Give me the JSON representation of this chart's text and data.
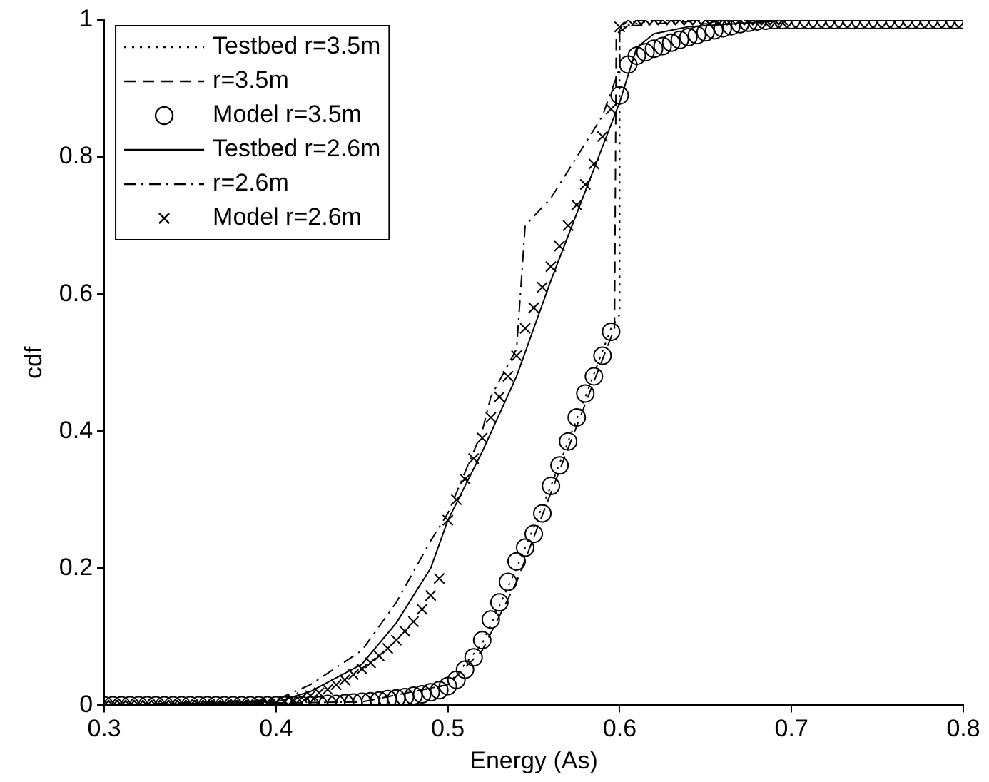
{
  "chart_data": {
    "type": "line",
    "xlabel": "Energy (As)",
    "ylabel": "cdf",
    "xlim": [
      0.3,
      0.8
    ],
    "ylim": [
      0,
      1
    ],
    "xticks": [
      0.3,
      0.4,
      0.5,
      0.6,
      0.7,
      0.8
    ],
    "yticks": [
      0,
      0.2,
      0.4,
      0.6,
      0.8,
      1
    ],
    "grid": false,
    "legend": "top left",
    "series": [
      {
        "name": "Testbed r=3.5m",
        "color": "#000000",
        "line_style": "dotted",
        "marker": "none",
        "x": [
          0.3,
          0.45,
          0.5,
          0.52,
          0.54,
          0.56,
          0.58,
          0.595,
          0.6,
          0.6,
          0.62,
          0.8
        ],
        "values": [
          0,
          0.005,
          0.03,
          0.09,
          0.2,
          0.32,
          0.45,
          0.55,
          0.57,
          0.99,
          1,
          1
        ]
      },
      {
        "name": "r=3.5m",
        "color": "#000000",
        "line_style": "dashed",
        "marker": "none",
        "x": [
          0.3,
          0.45,
          0.5,
          0.52,
          0.54,
          0.56,
          0.58,
          0.597,
          0.598,
          0.61,
          0.8
        ],
        "values": [
          0,
          0.005,
          0.03,
          0.08,
          0.18,
          0.31,
          0.44,
          0.55,
          0.98,
          1,
          1
        ]
      },
      {
        "name": "Model r=3.5m",
        "type": "scatter",
        "color": "#000000",
        "marker": "circle",
        "x": [
          0.3,
          0.305,
          0.31,
          0.315,
          0.32,
          0.325,
          0.33,
          0.335,
          0.34,
          0.345,
          0.35,
          0.355,
          0.36,
          0.365,
          0.37,
          0.375,
          0.38,
          0.385,
          0.39,
          0.395,
          0.4,
          0.405,
          0.41,
          0.415,
          0.42,
          0.425,
          0.43,
          0.435,
          0.44,
          0.445,
          0.45,
          0.455,
          0.46,
          0.465,
          0.47,
          0.475,
          0.48,
          0.485,
          0.49,
          0.495,
          0.5,
          0.505,
          0.51,
          0.515,
          0.52,
          0.525,
          0.53,
          0.535,
          0.54,
          0.545,
          0.55,
          0.555,
          0.56,
          0.565,
          0.57,
          0.575,
          0.58,
          0.585,
          0.59,
          0.595,
          0.6,
          0.605,
          0.61,
          0.615,
          0.62,
          0.625,
          0.63,
          0.635,
          0.64,
          0.645,
          0.65,
          0.655,
          0.66,
          0.665,
          0.67,
          0.675,
          0.68,
          0.685,
          0.69,
          0.695,
          0.7,
          0.705,
          0.71,
          0.715,
          0.72,
          0.725,
          0.73,
          0.735,
          0.74,
          0.745,
          0.75,
          0.755,
          0.76,
          0.765,
          0.77,
          0.775,
          0.78,
          0.785,
          0.79,
          0.795,
          0.8
        ],
        "values": [
          0,
          0,
          0,
          0,
          0,
          0,
          0,
          0,
          0,
          0,
          0,
          0,
          0,
          0,
          0,
          0,
          0,
          0,
          0,
          0,
          0,
          0,
          0,
          0,
          0,
          0,
          0.002,
          0.002,
          0.003,
          0.004,
          0.005,
          0.006,
          0.007,
          0.009,
          0.01,
          0.012,
          0.014,
          0.016,
          0.019,
          0.022,
          0.028,
          0.037,
          0.052,
          0.07,
          0.095,
          0.125,
          0.15,
          0.18,
          0.21,
          0.23,
          0.25,
          0.28,
          0.32,
          0.35,
          0.385,
          0.42,
          0.455,
          0.48,
          0.51,
          0.545,
          0.89,
          0.935,
          0.948,
          0.953,
          0.958,
          0.962,
          0.967,
          0.971,
          0.975,
          0.978,
          0.982,
          0.985,
          0.988,
          0.991,
          0.994,
          0.996,
          0.998,
          0.999,
          1,
          1,
          1,
          1,
          1,
          1,
          1,
          1,
          1,
          1,
          1,
          1,
          1,
          1,
          1,
          1,
          1,
          1,
          1,
          1,
          1,
          1,
          1
        ]
      },
      {
        "name": "Testbed r=2.6m",
        "color": "#000000",
        "line_style": "solid",
        "marker": "none",
        "x": [
          0.3,
          0.4,
          0.42,
          0.45,
          0.47,
          0.49,
          0.5,
          0.52,
          0.54,
          0.56,
          0.58,
          0.6,
          0.61,
          0.62,
          0.64,
          0.7,
          0.8
        ],
        "values": [
          0,
          0.005,
          0.02,
          0.06,
          0.12,
          0.2,
          0.27,
          0.37,
          0.48,
          0.62,
          0.75,
          0.88,
          0.96,
          0.98,
          0.99,
          1,
          1
        ]
      },
      {
        "name": "r=2.6m",
        "color": "#000000",
        "line_style": "dashdot",
        "marker": "none",
        "x": [
          0.3,
          0.4,
          0.42,
          0.45,
          0.47,
          0.49,
          0.5,
          0.52,
          0.525,
          0.54,
          0.545,
          0.56,
          0.58,
          0.59,
          0.6,
          0.6,
          0.65,
          0.8
        ],
        "values": [
          0,
          0.008,
          0.03,
          0.08,
          0.15,
          0.24,
          0.28,
          0.4,
          0.45,
          0.52,
          0.7,
          0.74,
          0.82,
          0.86,
          0.93,
          0.99,
          1,
          1
        ]
      },
      {
        "name": "Model r=2.6m",
        "type": "scatter",
        "color": "#000000",
        "marker": "cross",
        "x": [
          0.3,
          0.305,
          0.31,
          0.315,
          0.32,
          0.325,
          0.33,
          0.335,
          0.34,
          0.345,
          0.35,
          0.355,
          0.36,
          0.365,
          0.37,
          0.375,
          0.38,
          0.385,
          0.39,
          0.395,
          0.4,
          0.405,
          0.41,
          0.415,
          0.42,
          0.425,
          0.43,
          0.435,
          0.44,
          0.445,
          0.45,
          0.455,
          0.46,
          0.465,
          0.47,
          0.475,
          0.48,
          0.485,
          0.49,
          0.495,
          0.5,
          0.505,
          0.51,
          0.515,
          0.52,
          0.525,
          0.53,
          0.535,
          0.54,
          0.545,
          0.55,
          0.555,
          0.56,
          0.565,
          0.57,
          0.575,
          0.58,
          0.585,
          0.59,
          0.595,
          0.6,
          0.605,
          0.61,
          0.615,
          0.62,
          0.625,
          0.63,
          0.635,
          0.64,
          0.645,
          0.65,
          0.655,
          0.66,
          0.665,
          0.67,
          0.675,
          0.68,
          0.685,
          0.69,
          0.695
        ],
        "values": [
          0,
          0,
          0,
          0,
          0,
          0,
          0,
          0,
          0,
          0,
          0,
          0,
          0,
          0,
          0,
          0,
          0,
          0,
          0,
          0.002,
          0.004,
          0.006,
          0.008,
          0.011,
          0.014,
          0.018,
          0.023,
          0.03,
          0.037,
          0.045,
          0.053,
          0.062,
          0.072,
          0.083,
          0.095,
          0.108,
          0.122,
          0.14,
          0.16,
          0.185,
          0.27,
          0.3,
          0.33,
          0.36,
          0.39,
          0.42,
          0.45,
          0.48,
          0.51,
          0.55,
          0.58,
          0.61,
          0.64,
          0.67,
          0.7,
          0.73,
          0.76,
          0.79,
          0.83,
          0.87,
          0.99,
          1,
          1,
          1,
          1,
          1,
          1,
          1,
          1,
          1,
          1,
          1,
          1,
          1,
          1,
          1,
          1,
          1,
          1,
          1
        ]
      }
    ]
  }
}
